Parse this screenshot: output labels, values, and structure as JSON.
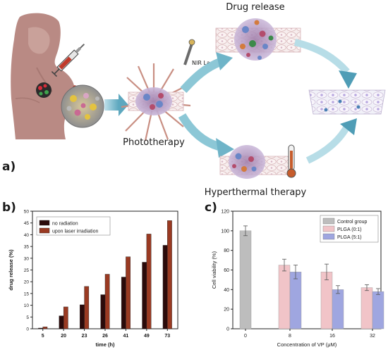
{
  "figure": {
    "panel_a": {
      "label": "a)",
      "drug_release_label": "Drug release",
      "nir_laser_label": "NIR Laser",
      "phototherapy_label": "Phototherapy",
      "hyperthermal_label": "Hyperthermal therapy"
    },
    "panel_b": {
      "label": "b)"
    },
    "panel_c": {
      "label": "c)"
    }
  },
  "chart_data": [
    {
      "type": "bar",
      "panel": "b",
      "categories": [
        "5",
        "20",
        "23",
        "26",
        "41",
        "49",
        "73"
      ],
      "series": [
        {
          "name": "no radiation",
          "values": [
            0.3,
            5.5,
            10.2,
            14.5,
            22,
            28.3,
            35.5
          ],
          "color": "#2b0a0a"
        },
        {
          "name": "upon laser irradiation",
          "values": [
            0.8,
            9.3,
            18,
            23.2,
            30.6,
            40.3,
            46
          ],
          "color": "#9a3a22"
        }
      ],
      "xlabel": "time (h)",
      "ylabel": "drug release (%)",
      "ylim": [
        0,
        50
      ],
      "yticks": [
        0,
        5,
        10,
        15,
        20,
        25,
        30,
        35,
        40,
        45,
        50
      ],
      "grid": false,
      "legend": "top-left"
    },
    {
      "type": "bar",
      "panel": "c",
      "categories": [
        "0",
        "8",
        "16",
        "32"
      ],
      "series": [
        {
          "name": "Control group",
          "values": [
            100,
            null,
            null,
            null
          ],
          "errors": [
            5,
            null,
            null,
            null
          ],
          "color": "#bdbdbd"
        },
        {
          "name": "PLGA (0:1)",
          "values": [
            null,
            65,
            58,
            42
          ],
          "errors": [
            null,
            6,
            8,
            3
          ],
          "color": "#f1c4c8"
        },
        {
          "name": "PLGA (5:1)",
          "values": [
            null,
            58,
            40,
            38
          ],
          "errors": [
            null,
            7,
            4,
            3
          ],
          "color": "#9fa6e0"
        }
      ],
      "xlabel": "Concentration of VP (μM)",
      "ylabel": "Cell viability (%)",
      "ylim": [
        0,
        120
      ],
      "yticks": [
        0,
        20,
        40,
        60,
        80,
        100,
        120
      ],
      "grid": false,
      "legend": "top-right"
    }
  ]
}
